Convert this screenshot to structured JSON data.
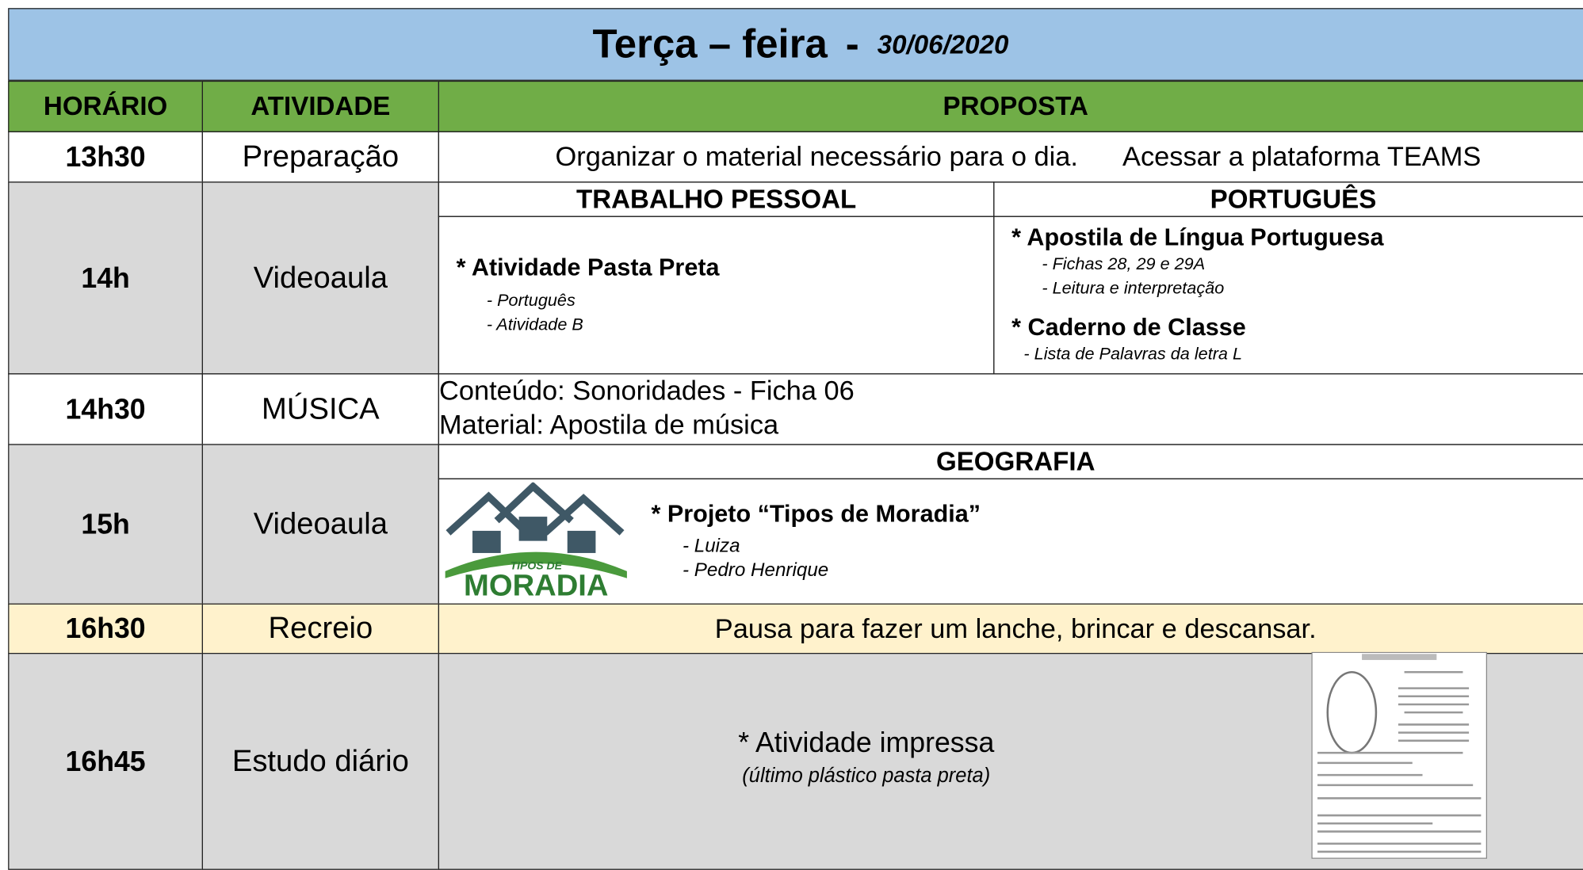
{
  "header": {
    "title": "Terça – feira",
    "date": "30/06/2020"
  },
  "columns": [
    "HORÁRIO",
    "ATIVIDADE",
    "PROPOSTA"
  ],
  "rows": [
    {
      "time": "13h30",
      "activity": "Preparação",
      "proposal": [
        "Organizar o material necessário para o dia.",
        "Acessar a plataforma TEAMS"
      ]
    },
    {
      "time": "14h",
      "activity": "Videoaula",
      "sections": [
        {
          "heading": "TRABALHO PESSOAL",
          "items": [
            {
              "title": "* Atividade Pasta Preta",
              "details": [
                "- Português",
                "- Atividade B"
              ]
            }
          ]
        },
        {
          "heading": "PORTUGUÊS",
          "items": [
            {
              "title": "* Apostila de Língua Portuguesa",
              "details": [
                "- Fichas 28, 29 e 29A",
                "- Leitura e interpretação"
              ]
            },
            {
              "title": "* Caderno de Classe",
              "details": [
                "- Lista de Palavras da letra L"
              ]
            }
          ]
        }
      ]
    },
    {
      "time": "14h30",
      "activity": "MÚSICA",
      "proposal": [
        "Conteúdo: Sonoridades - Ficha 06",
        "Material: Apostila de música"
      ]
    },
    {
      "time": "15h",
      "activity": "Videoaula",
      "heading": "GEOGRAFIA",
      "logo": [
        "TIPOS DE",
        "MORADIA"
      ],
      "title": "* Projeto “Tipos de Moradia”",
      "details": [
        "- Luiza",
        "- Pedro Henrique"
      ]
    },
    {
      "time": "16h30",
      "activity": "Recreio",
      "proposal": "Pausa para fazer um lanche, brincar e descansar."
    },
    {
      "time": "16h45",
      "activity": "Estudo diário",
      "title": "* Atividade impressa",
      "note": "(último plástico pasta preta)"
    }
  ]
}
